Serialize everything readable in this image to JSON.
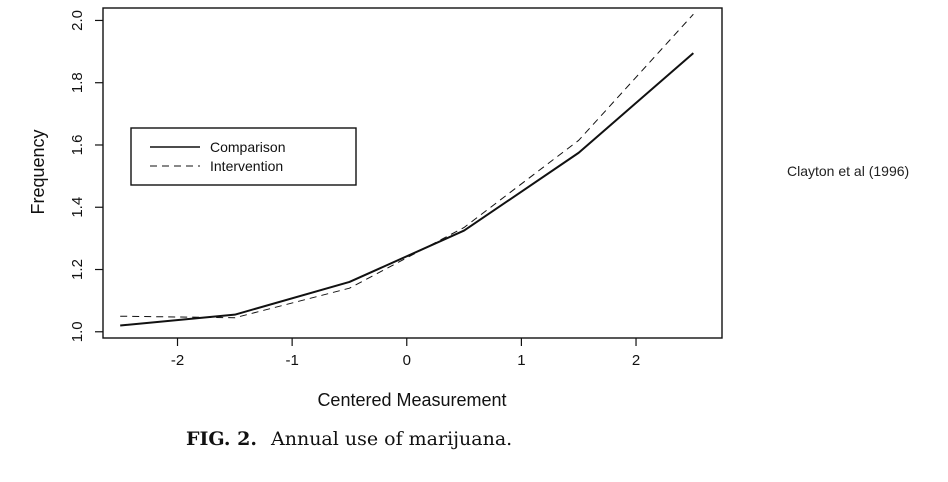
{
  "chart_data": {
    "type": "line",
    "title": "",
    "xlabel": "Centered Measurement",
    "ylabel": "Frequency",
    "xlim": [
      -2.65,
      2.75
    ],
    "ylim": [
      0.98,
      2.04
    ],
    "x_ticks": [
      -2,
      -1,
      0,
      1,
      2
    ],
    "x_tick_labels": [
      "-2",
      "-1",
      "0",
      "1",
      "2"
    ],
    "y_ticks": [
      1.0,
      1.2,
      1.4,
      1.6,
      1.8,
      2.0
    ],
    "y_tick_labels": [
      "1.0",
      "1.2",
      "1.4",
      "1.6",
      "1.8",
      "2.0"
    ],
    "grid": false,
    "legend_position": "upper-left",
    "series": [
      {
        "name": "Comparison",
        "style": "solid",
        "x": [
          -2.5,
          -1.5,
          -0.5,
          0.5,
          1.5,
          2.5
        ],
        "y": [
          1.02,
          1.055,
          1.16,
          1.325,
          1.575,
          1.895
        ]
      },
      {
        "name": "Intervention",
        "style": "dashed",
        "x": [
          -2.5,
          -1.5,
          -0.5,
          0.5,
          1.5,
          2.5
        ],
        "y": [
          1.05,
          1.045,
          1.14,
          1.335,
          1.615,
          2.02
        ]
      }
    ]
  },
  "caption": {
    "figure_label": "FIG. 2.",
    "text": "Annual use of marijuana."
  },
  "citation": "Clayton et al (1996)"
}
